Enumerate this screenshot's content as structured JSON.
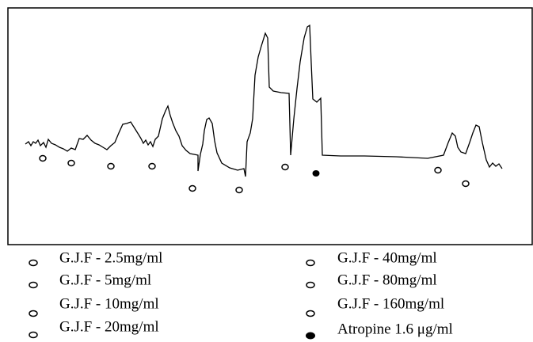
{
  "legend": {
    "items": [
      "G.J.F - 2.5mg/ml",
      "G.J.F - 5mg/ml",
      "G.J.F - 10mg/ml",
      "G.J.F - 20mg/ml",
      "G.J.F - 40mg/ml",
      "G.J.F - 80mg/ml",
      "G.J.F - 160mg/ml",
      "Atropine 1.6 μg/ml"
    ]
  }
}
